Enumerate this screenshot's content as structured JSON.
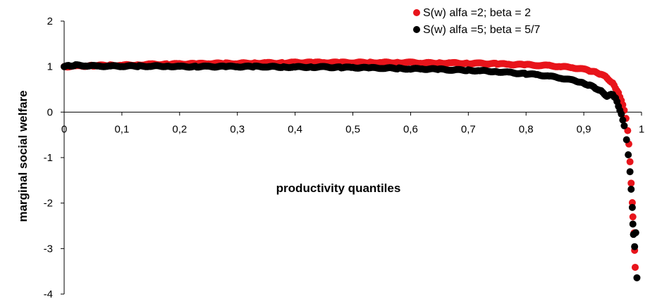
{
  "chart_data": {
    "type": "scatter",
    "xlabel": "productivity quantiles",
    "ylabel": "marginal social welfare",
    "xlim": [
      0,
      1
    ],
    "ylim": [
      -4,
      2
    ],
    "x_ticks": [
      {
        "value": 0,
        "label": "0"
      },
      {
        "value": 0.1,
        "label": "0,1"
      },
      {
        "value": 0.2,
        "label": "0,2"
      },
      {
        "value": 0.3,
        "label": "0,3"
      },
      {
        "value": 0.4,
        "label": "0,4"
      },
      {
        "value": 0.5,
        "label": "0,5"
      },
      {
        "value": 0.6,
        "label": "0,6"
      },
      {
        "value": 0.7,
        "label": "0,7"
      },
      {
        "value": 0.8,
        "label": "0,8"
      },
      {
        "value": 0.9,
        "label": "0,9"
      },
      {
        "value": 1,
        "label": "1"
      }
    ],
    "y_ticks": [
      {
        "value": 2,
        "label": "2"
      },
      {
        "value": 1,
        "label": "1"
      },
      {
        "value": 0,
        "label": "0"
      },
      {
        "value": -1,
        "label": "-1"
      },
      {
        "value": -2,
        "label": "-2"
      },
      {
        "value": -3,
        "label": "-3"
      },
      {
        "value": -4,
        "label": "-4"
      }
    ],
    "grid": false,
    "legend_position": "top-right",
    "series": [
      {
        "name": "S(w) alfa =2; beta = 2",
        "color": "#e8141b",
        "points": [
          [
            0.0,
            1.0
          ],
          [
            0.02,
            1.01
          ],
          [
            0.05,
            1.02
          ],
          [
            0.08,
            1.03
          ],
          [
            0.1,
            1.03
          ],
          [
            0.13,
            1.04
          ],
          [
            0.15,
            1.05
          ],
          [
            0.18,
            1.05
          ],
          [
            0.2,
            1.06
          ],
          [
            0.23,
            1.06
          ],
          [
            0.25,
            1.07
          ],
          [
            0.28,
            1.07
          ],
          [
            0.3,
            1.07
          ],
          [
            0.33,
            1.08
          ],
          [
            0.35,
            1.08
          ],
          [
            0.38,
            1.08
          ],
          [
            0.4,
            1.09
          ],
          [
            0.43,
            1.09
          ],
          [
            0.45,
            1.09
          ],
          [
            0.48,
            1.09
          ],
          [
            0.5,
            1.09
          ],
          [
            0.53,
            1.09
          ],
          [
            0.55,
            1.09
          ],
          [
            0.58,
            1.09
          ],
          [
            0.6,
            1.09
          ],
          [
            0.62,
            1.08
          ],
          [
            0.65,
            1.08
          ],
          [
            0.67,
            1.08
          ],
          [
            0.7,
            1.07
          ],
          [
            0.72,
            1.07
          ],
          [
            0.75,
            1.06
          ],
          [
            0.77,
            1.05
          ],
          [
            0.8,
            1.04
          ],
          [
            0.82,
            1.03
          ],
          [
            0.84,
            1.02
          ],
          [
            0.86,
            1.0
          ],
          [
            0.88,
            0.98
          ],
          [
            0.9,
            0.94
          ],
          [
            0.91,
            0.91
          ],
          [
            0.92,
            0.88
          ],
          [
            0.93,
            0.83
          ],
          [
            0.94,
            0.76
          ],
          [
            0.95,
            0.63
          ],
          [
            0.955,
            0.53
          ],
          [
            0.96,
            0.42
          ],
          [
            0.965,
            0.25
          ],
          [
            0.97,
            0.05
          ],
          [
            0.973,
            -0.15
          ],
          [
            0.976,
            -0.4
          ],
          [
            0.978,
            -0.7
          ],
          [
            0.98,
            -1.1
          ],
          [
            0.982,
            -1.55
          ],
          [
            0.984,
            -2.0
          ],
          [
            0.985,
            -2.3
          ],
          [
            0.987,
            -2.65
          ],
          [
            0.988,
            -3.05
          ],
          [
            0.989,
            -3.4
          ]
        ]
      },
      {
        "name": "S(w) alfa =5; beta = 5/7",
        "color": "#000000",
        "points": [
          [
            0.0,
            1.0
          ],
          [
            0.01,
            1.02
          ],
          [
            0.02,
            1.03
          ],
          [
            0.04,
            1.02
          ],
          [
            0.06,
            1.01
          ],
          [
            0.08,
            1.01
          ],
          [
            0.1,
            1.01
          ],
          [
            0.13,
            1.01
          ],
          [
            0.15,
            1.01
          ],
          [
            0.18,
            1.01
          ],
          [
            0.2,
            1.0
          ],
          [
            0.23,
            1.0
          ],
          [
            0.25,
            1.0
          ],
          [
            0.28,
            1.0
          ],
          [
            0.3,
            1.0
          ],
          [
            0.33,
            1.0
          ],
          [
            0.35,
            1.0
          ],
          [
            0.38,
            0.99
          ],
          [
            0.4,
            0.99
          ],
          [
            0.43,
            0.99
          ],
          [
            0.45,
            0.99
          ],
          [
            0.48,
            0.98
          ],
          [
            0.5,
            0.98
          ],
          [
            0.53,
            0.97
          ],
          [
            0.55,
            0.97
          ],
          [
            0.58,
            0.96
          ],
          [
            0.6,
            0.95
          ],
          [
            0.62,
            0.95
          ],
          [
            0.65,
            0.94
          ],
          [
            0.67,
            0.93
          ],
          [
            0.7,
            0.92
          ],
          [
            0.72,
            0.91
          ],
          [
            0.75,
            0.89
          ],
          [
            0.77,
            0.87
          ],
          [
            0.8,
            0.84
          ],
          [
            0.82,
            0.82
          ],
          [
            0.84,
            0.79
          ],
          [
            0.86,
            0.75
          ],
          [
            0.88,
            0.7
          ],
          [
            0.89,
            0.67
          ],
          [
            0.9,
            0.63
          ],
          [
            0.91,
            0.59
          ],
          [
            0.92,
            0.53
          ],
          [
            0.93,
            0.46
          ],
          [
            0.94,
            0.35
          ],
          [
            0.95,
            0.39
          ],
          [
            0.955,
            0.3
          ],
          [
            0.96,
            0.14
          ],
          [
            0.965,
            -0.05
          ],
          [
            0.97,
            -0.3
          ],
          [
            0.974,
            -0.6
          ],
          [
            0.977,
            -0.95
          ],
          [
            0.98,
            -1.3
          ],
          [
            0.982,
            -1.7
          ],
          [
            0.984,
            -2.1
          ],
          [
            0.985,
            -2.45
          ],
          [
            0.986,
            -2.7
          ],
          [
            0.988,
            -2.95
          ],
          [
            0.99,
            -2.65
          ],
          [
            0.992,
            -3.65
          ]
        ]
      }
    ]
  }
}
